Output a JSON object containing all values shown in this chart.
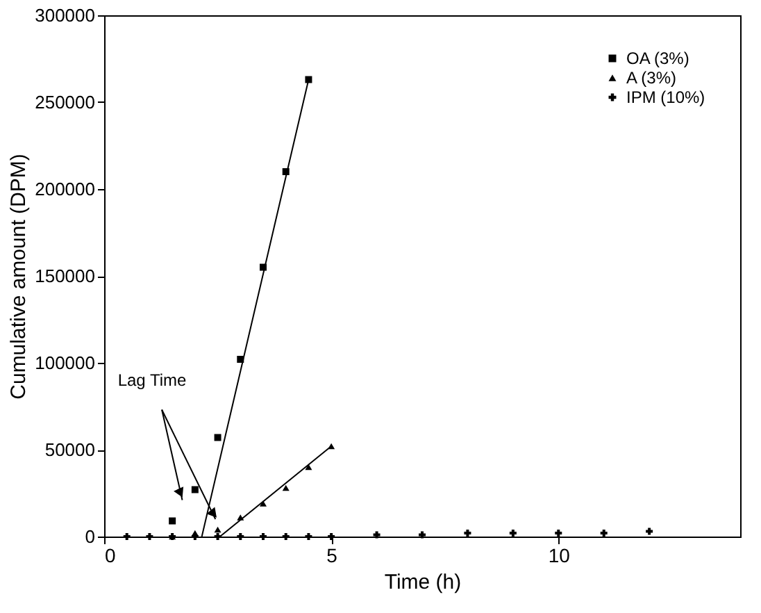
{
  "chart_data": {
    "type": "scatter",
    "xlabel": "Time (h)",
    "ylabel": "Cumulative amount (DPM)",
    "xlim": [
      0,
      14
    ],
    "xticks": [
      0,
      5,
      10
    ],
    "ylim": [
      0,
      300000
    ],
    "yticks": [
      0,
      50000,
      100000,
      150000,
      200000,
      250000,
      300000
    ],
    "grid": false,
    "legend": "top right",
    "annotations": [
      {
        "text": "Lag Time",
        "x": 2.45,
        "y": 10000
      }
    ],
    "series": [
      {
        "name": "OA (3%)",
        "color": "#000000",
        "marker": "square",
        "x": [
          1.5,
          2,
          2.5,
          3,
          3.5,
          4,
          4.5
        ],
        "values": [
          9000,
          27000,
          57000,
          102000,
          155000,
          210000,
          263000
        ]
      },
      {
        "name": "A (3%)",
        "color": "#000000",
        "marker": "triangle",
        "x": [
          1.5,
          2,
          2.5,
          3,
          3.5,
          4,
          4.5,
          5
        ],
        "values": [
          0,
          2000,
          4000,
          11000,
          19000,
          28000,
          40000,
          52000
        ]
      },
      {
        "name": "IPM (10%)",
        "color": "#000000",
        "marker": "cross",
        "x": [
          0.5,
          1,
          1.5,
          2,
          2.5,
          3,
          3.5,
          4,
          4.5,
          5,
          6,
          7,
          8,
          9,
          10,
          11,
          12
        ],
        "values": [
          0,
          0,
          0,
          0,
          0,
          0,
          0,
          0,
          0,
          0,
          1000,
          1000,
          2000,
          2000,
          2000,
          2000,
          3000
        ]
      },
      {
        "type": "line",
        "color": "#000000",
        "marker": "none",
        "x": [
          2.15,
          4.5
        ],
        "values": [
          0,
          263000
        ]
      },
      {
        "type": "line",
        "color": "#000000",
        "marker": "none",
        "x": [
          2.55,
          5
        ],
        "values": [
          0,
          52000
        ]
      }
    ]
  }
}
